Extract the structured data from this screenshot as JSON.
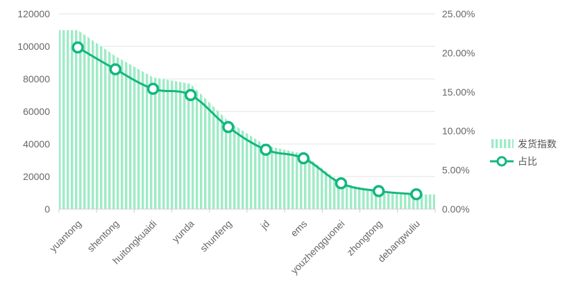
{
  "chart_data": {
    "type": "bar",
    "categories": [
      "yuantong",
      "shentong",
      "huitongkuaidi",
      "yunda",
      "shunfeng",
      "jd",
      "ems",
      "youzhengguonei",
      "zhongtong",
      "debangwuliu"
    ],
    "series": [
      {
        "name": "发货指数",
        "type": "area",
        "axis": "left",
        "values": [
          110000,
          94000,
          81000,
          77000,
          54000,
          39000,
          34000,
          16000,
          11000,
          9000
        ]
      },
      {
        "name": "占比",
        "type": "line",
        "axis": "right",
        "values": [
          20.7,
          17.9,
          15.4,
          14.6,
          10.5,
          7.6,
          6.5,
          3.3,
          2.3,
          1.9
        ]
      }
    ],
    "y_left": {
      "ylim": [
        0,
        120000
      ],
      "ticks": [
        "0",
        "20000",
        "40000",
        "60000",
        "80000",
        "100000",
        "120000"
      ]
    },
    "y_right": {
      "ylim": [
        0,
        25
      ],
      "ticks": [
        "0.00%",
        "5.00%",
        "10.00%",
        "15.00%",
        "20.00%",
        "25.00%"
      ]
    },
    "grid": true,
    "legend": "right",
    "colors": {
      "bar": "#9FEBC6",
      "line": "#12B77F",
      "grid": "#E3E3E3",
      "axis": "#CCCCCC",
      "text": "#666666"
    }
  }
}
